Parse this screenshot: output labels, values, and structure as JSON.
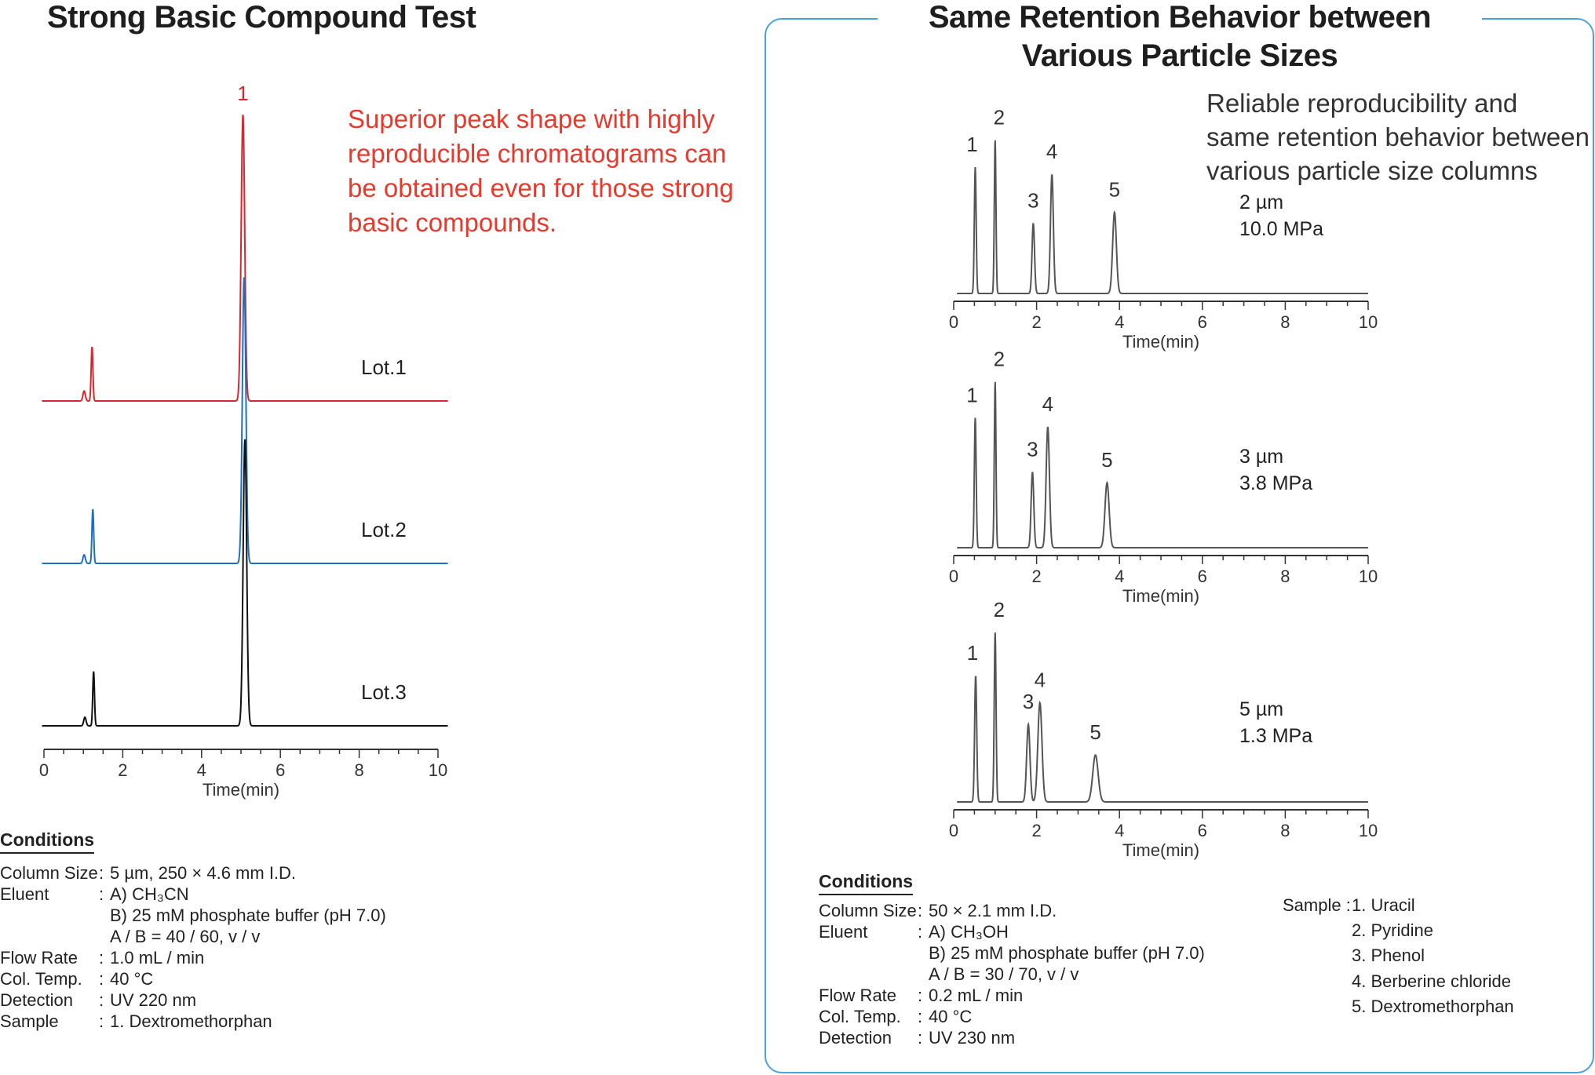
{
  "left": {
    "title": "Strong Basic Compound Test",
    "note_lines": [
      "Superior peak shape with highly",
      "reproducible chromatograms can",
      "be obtained even for those strong",
      "basic compounds."
    ],
    "conditions": {
      "heading": "Conditions",
      "rows": [
        {
          "label": "Column Size",
          "sep": ":",
          "value": "5 µm, 250 × 4.6 mm I.D."
        },
        {
          "label": "Eluent",
          "sep": ":",
          "value": "A) CH₃CN"
        },
        {
          "label": "",
          "sep": "",
          "value": "B) 25 mM phosphate buffer (pH 7.0)"
        },
        {
          "label": "",
          "sep": "",
          "value": "A / B = 40 / 60, v / v"
        },
        {
          "label": "Flow Rate",
          "sep": ":",
          "value": "1.0 mL / min"
        },
        {
          "label": "Col. Temp.",
          "sep": ":",
          "value": "40 °C"
        },
        {
          "label": "Detection",
          "sep": ":",
          "value": "UV 220 nm"
        },
        {
          "label": "Sample",
          "sep": ":",
          "value": "1. Dextromethorphan"
        }
      ]
    }
  },
  "right": {
    "title_lines": [
      "Same Retention Behavior between",
      "Various Particle Sizes"
    ],
    "note_lines": [
      "Reliable reproducibility and",
      "same retention behavior between",
      "various particle size columns"
    ],
    "conditions": {
      "heading": "Conditions",
      "rows": [
        {
          "label": "Column Size",
          "sep": ":",
          "value": "50 × 2.1 mm I.D."
        },
        {
          "label": "Eluent",
          "sep": ":",
          "value": "A) CH₃OH"
        },
        {
          "label": "",
          "sep": "",
          "value": "B) 25 mM phosphate buffer (pH 7.0)"
        },
        {
          "label": "",
          "sep": "",
          "value": "A / B = 30 / 70, v / v"
        },
        {
          "label": "Flow Rate",
          "sep": ":",
          "value": "0.2 mL / min"
        },
        {
          "label": "Col. Temp.",
          "sep": ":",
          "value": "40 °C"
        },
        {
          "label": "Detection",
          "sep": ":",
          "value": "UV 230 nm"
        }
      ]
    },
    "sample": {
      "label": "Sample :",
      "items": [
        "1. Uracil",
        "2. Pyridine",
        "3. Phenol",
        "4. Berberine chloride",
        "5. Dextromethorphan"
      ]
    }
  },
  "chart_data": [
    {
      "type": "line",
      "xlabel": "Time(min)",
      "xlim": [
        0,
        10
      ],
      "xticks": [
        0,
        2,
        4,
        6,
        8,
        10
      ],
      "peak_label": {
        "text": "1",
        "x": 5.05
      },
      "series": [
        {
          "name": "Lot.1",
          "color": "#d9272e",
          "peaks": [
            {
              "x": 1.02,
              "h": 0.035,
              "w": 0.03
            },
            {
              "x": 1.22,
              "h": 0.19,
              "w": 0.022
            },
            {
              "x": 5.05,
              "h": 1.0,
              "w": 0.045
            }
          ]
        },
        {
          "name": "Lot.2",
          "color": "#1f6fbf",
          "peaks": [
            {
              "x": 1.02,
              "h": 0.03,
              "w": 0.03
            },
            {
              "x": 1.24,
              "h": 0.19,
              "w": 0.022
            },
            {
              "x": 5.08,
              "h": 1.0,
              "w": 0.045
            }
          ]
        },
        {
          "name": "Lot.3",
          "color": "#111111",
          "peaks": [
            {
              "x": 1.04,
              "h": 0.03,
              "w": 0.03
            },
            {
              "x": 1.26,
              "h": 0.19,
              "w": 0.022
            },
            {
              "x": 5.1,
              "h": 1.0,
              "w": 0.045
            }
          ]
        }
      ]
    },
    {
      "type": "line",
      "name_lines": [
        "2 µm",
        "10.0 MPa"
      ],
      "xlabel": "Time(min)",
      "xlim": [
        0,
        10
      ],
      "xticks": [
        0,
        2,
        4,
        6,
        8,
        10
      ],
      "color": "#555555",
      "peaks": [
        {
          "label": "1",
          "x": 0.52,
          "h": 0.7,
          "w": 0.022
        },
        {
          "label": "2",
          "x": 1.0,
          "h": 0.85,
          "w": 0.02
        },
        {
          "label": "3",
          "x": 1.92,
          "h": 0.39,
          "w": 0.03
        },
        {
          "label": "4",
          "x": 2.37,
          "h": 0.66,
          "w": 0.035
        },
        {
          "label": "5",
          "x": 3.88,
          "h": 0.45,
          "w": 0.045
        }
      ]
    },
    {
      "type": "line",
      "name_lines": [
        "3 µm",
        "3.8 MPa"
      ],
      "xlabel": "Time(min)",
      "xlim": [
        0,
        10
      ],
      "xticks": [
        0,
        2,
        4,
        6,
        8,
        10
      ],
      "color": "#555555",
      "peaks": [
        {
          "label": "1",
          "x": 0.52,
          "h": 0.72,
          "w": 0.022
        },
        {
          "label": "2",
          "x": 1.0,
          "h": 0.92,
          "w": 0.02
        },
        {
          "label": "3",
          "x": 1.9,
          "h": 0.42,
          "w": 0.032
        },
        {
          "label": "4",
          "x": 2.27,
          "h": 0.67,
          "w": 0.04
        },
        {
          "label": "5",
          "x": 3.7,
          "h": 0.36,
          "w": 0.05
        }
      ]
    },
    {
      "type": "line",
      "name_lines": [
        "5 µm",
        "1.3 MPa"
      ],
      "xlabel": "Time(min)",
      "xlim": [
        0,
        10
      ],
      "xticks": [
        0,
        2,
        4,
        6,
        8,
        10
      ],
      "color": "#555555",
      "peaks": [
        {
          "label": "1",
          "x": 0.53,
          "h": 0.7,
          "w": 0.025
        },
        {
          "label": "2",
          "x": 1.0,
          "h": 0.94,
          "w": 0.022
        },
        {
          "label": "3",
          "x": 1.8,
          "h": 0.43,
          "w": 0.04
        },
        {
          "label": "4",
          "x": 2.08,
          "h": 0.55,
          "w": 0.05
        },
        {
          "label": "5",
          "x": 3.42,
          "h": 0.26,
          "w": 0.065
        }
      ]
    }
  ]
}
